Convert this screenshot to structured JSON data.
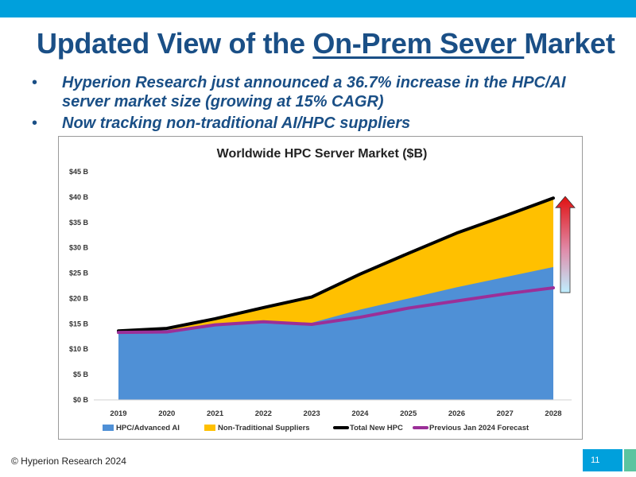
{
  "slide": {
    "title_pre": "Updated View of the ",
    "title_underlined": "On-Prem Sever ",
    "title_post": "Market",
    "bullets": [
      "Hyperion Research just announced a 36.7% increase in the HPC/AI server market size (growing at 15% CAGR)",
      "Now tracking non-traditional AI/HPC suppliers"
    ],
    "bullet_symbol": "•",
    "copyright": "© Hyperion Research 2024",
    "page_number": "11",
    "colors": {
      "top_bar": "#00a0dc",
      "title": "#1a4f86",
      "page_badge": "#00a0dc",
      "corner_strip": "#5bc4a0"
    }
  },
  "chart_data": {
    "type": "area",
    "title": "Worldwide HPC Server Market ($B)",
    "categories": [
      "2019",
      "2020",
      "2021",
      "2022",
      "2023",
      "2024",
      "2025",
      "2026",
      "2027",
      "2028"
    ],
    "ylim": [
      0,
      45
    ],
    "yticks": [
      0,
      5,
      10,
      15,
      20,
      25,
      30,
      35,
      40,
      45
    ],
    "ytick_labels": [
      "$0 B",
      "$5 B",
      "$10 B",
      "$15 B",
      "$20 B",
      "$25 B",
      "$30 B",
      "$35 B",
      "$40 B",
      "$45 B"
    ],
    "xlabel": "",
    "ylabel": "",
    "grid": false,
    "legend_position": "bottom",
    "series": [
      {
        "name": "HPC/Advanced AI",
        "kind": "area",
        "color": "#4f90d6",
        "values": [
          13.6,
          13.8,
          14.8,
          15.3,
          15.2,
          17.8,
          20.0,
          22.2,
          24.2,
          26.2
        ]
      },
      {
        "name": "Non-Traditional Suppliers",
        "kind": "area",
        "color": "#ffc000",
        "values": [
          0.0,
          0.3,
          1.2,
          2.9,
          5.1,
          7.0,
          8.9,
          10.7,
          12.1,
          13.6
        ]
      },
      {
        "name": "Total New HPC",
        "kind": "line",
        "color": "#000000",
        "values": [
          13.6,
          14.1,
          16.0,
          18.2,
          20.3,
          24.8,
          28.9,
          32.9,
          36.3,
          39.8
        ]
      },
      {
        "name": "Previous Jan 2024 Forecast",
        "kind": "line",
        "color": "#9b2f98",
        "values": [
          13.3,
          13.4,
          14.8,
          15.4,
          14.9,
          16.3,
          18.1,
          19.5,
          20.9,
          22.1
        ]
      }
    ],
    "annotation": {
      "type": "gradient-up-arrow",
      "from_value": 22.1,
      "to_value": 39.8,
      "colors": [
        "#e01010",
        "#bfefff"
      ]
    }
  }
}
